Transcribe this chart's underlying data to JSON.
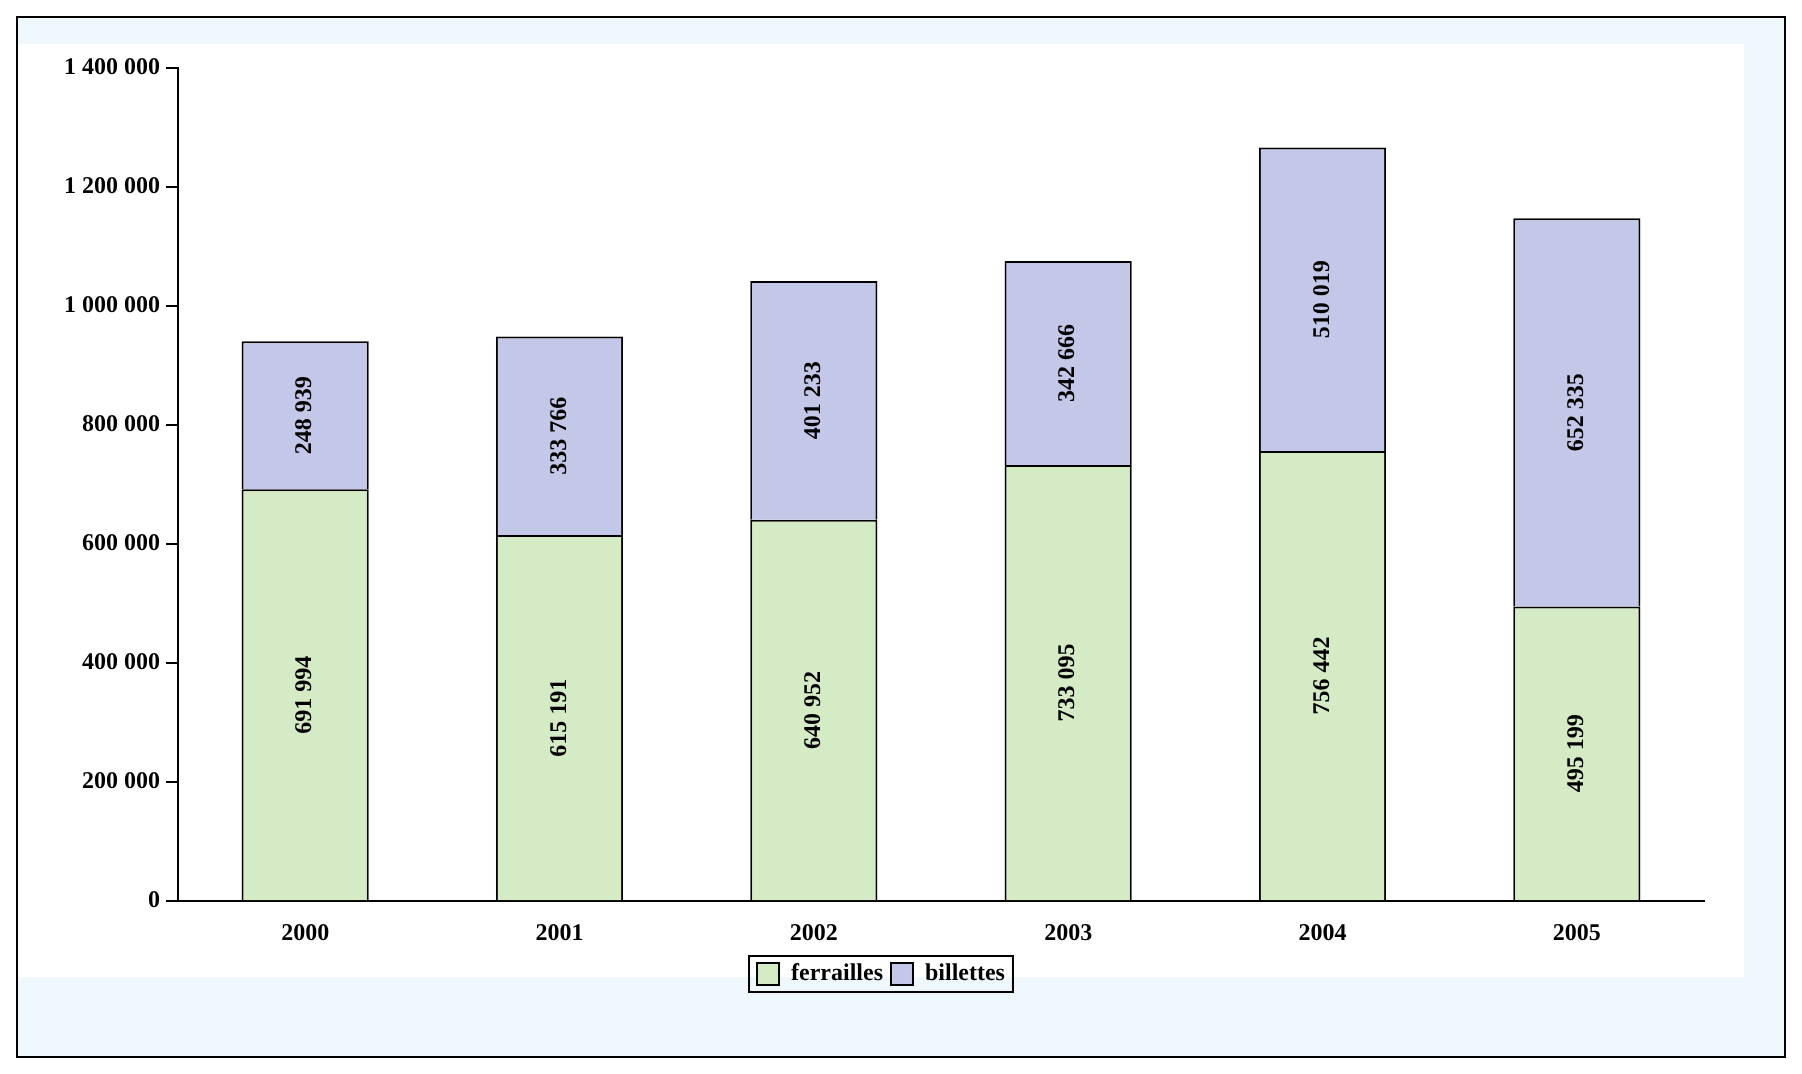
{
  "chart_data": {
    "type": "bar",
    "stacked": true,
    "categories": [
      "2000",
      "2001",
      "2002",
      "2003",
      "2004",
      "2005"
    ],
    "series": [
      {
        "name": "ferrailles",
        "color": "#d5ebc5",
        "values": [
          691994,
          615191,
          640952,
          733095,
          756442,
          495199
        ],
        "value_labels": [
          "691 994",
          "615 191",
          "640 952",
          "733 095",
          "756 442",
          "495 199"
        ]
      },
      {
        "name": "billettes",
        "color": "#c4c8e8",
        "values": [
          248939,
          333766,
          401233,
          342666,
          510019,
          652335
        ],
        "value_labels": [
          "248 939",
          "333 766",
          "401 233",
          "342 666",
          "510 019",
          "652 335"
        ]
      }
    ],
    "ylim": [
      0,
      1400000
    ],
    "yticks": [
      {
        "value": 0,
        "label": "0"
      },
      {
        "value": 200000,
        "label": "200 000"
      },
      {
        "value": 400000,
        "label": "400 000"
      },
      {
        "value": 600000,
        "label": "600 000"
      },
      {
        "value": 800000,
        "label": "800 000"
      },
      {
        "value": 1000000,
        "label": "1 000 000"
      },
      {
        "value": 1200000,
        "label": "1 200 000"
      },
      {
        "value": 1400000,
        "label": "1 400 000"
      }
    ],
    "grid": false,
    "legend": "bottom"
  }
}
